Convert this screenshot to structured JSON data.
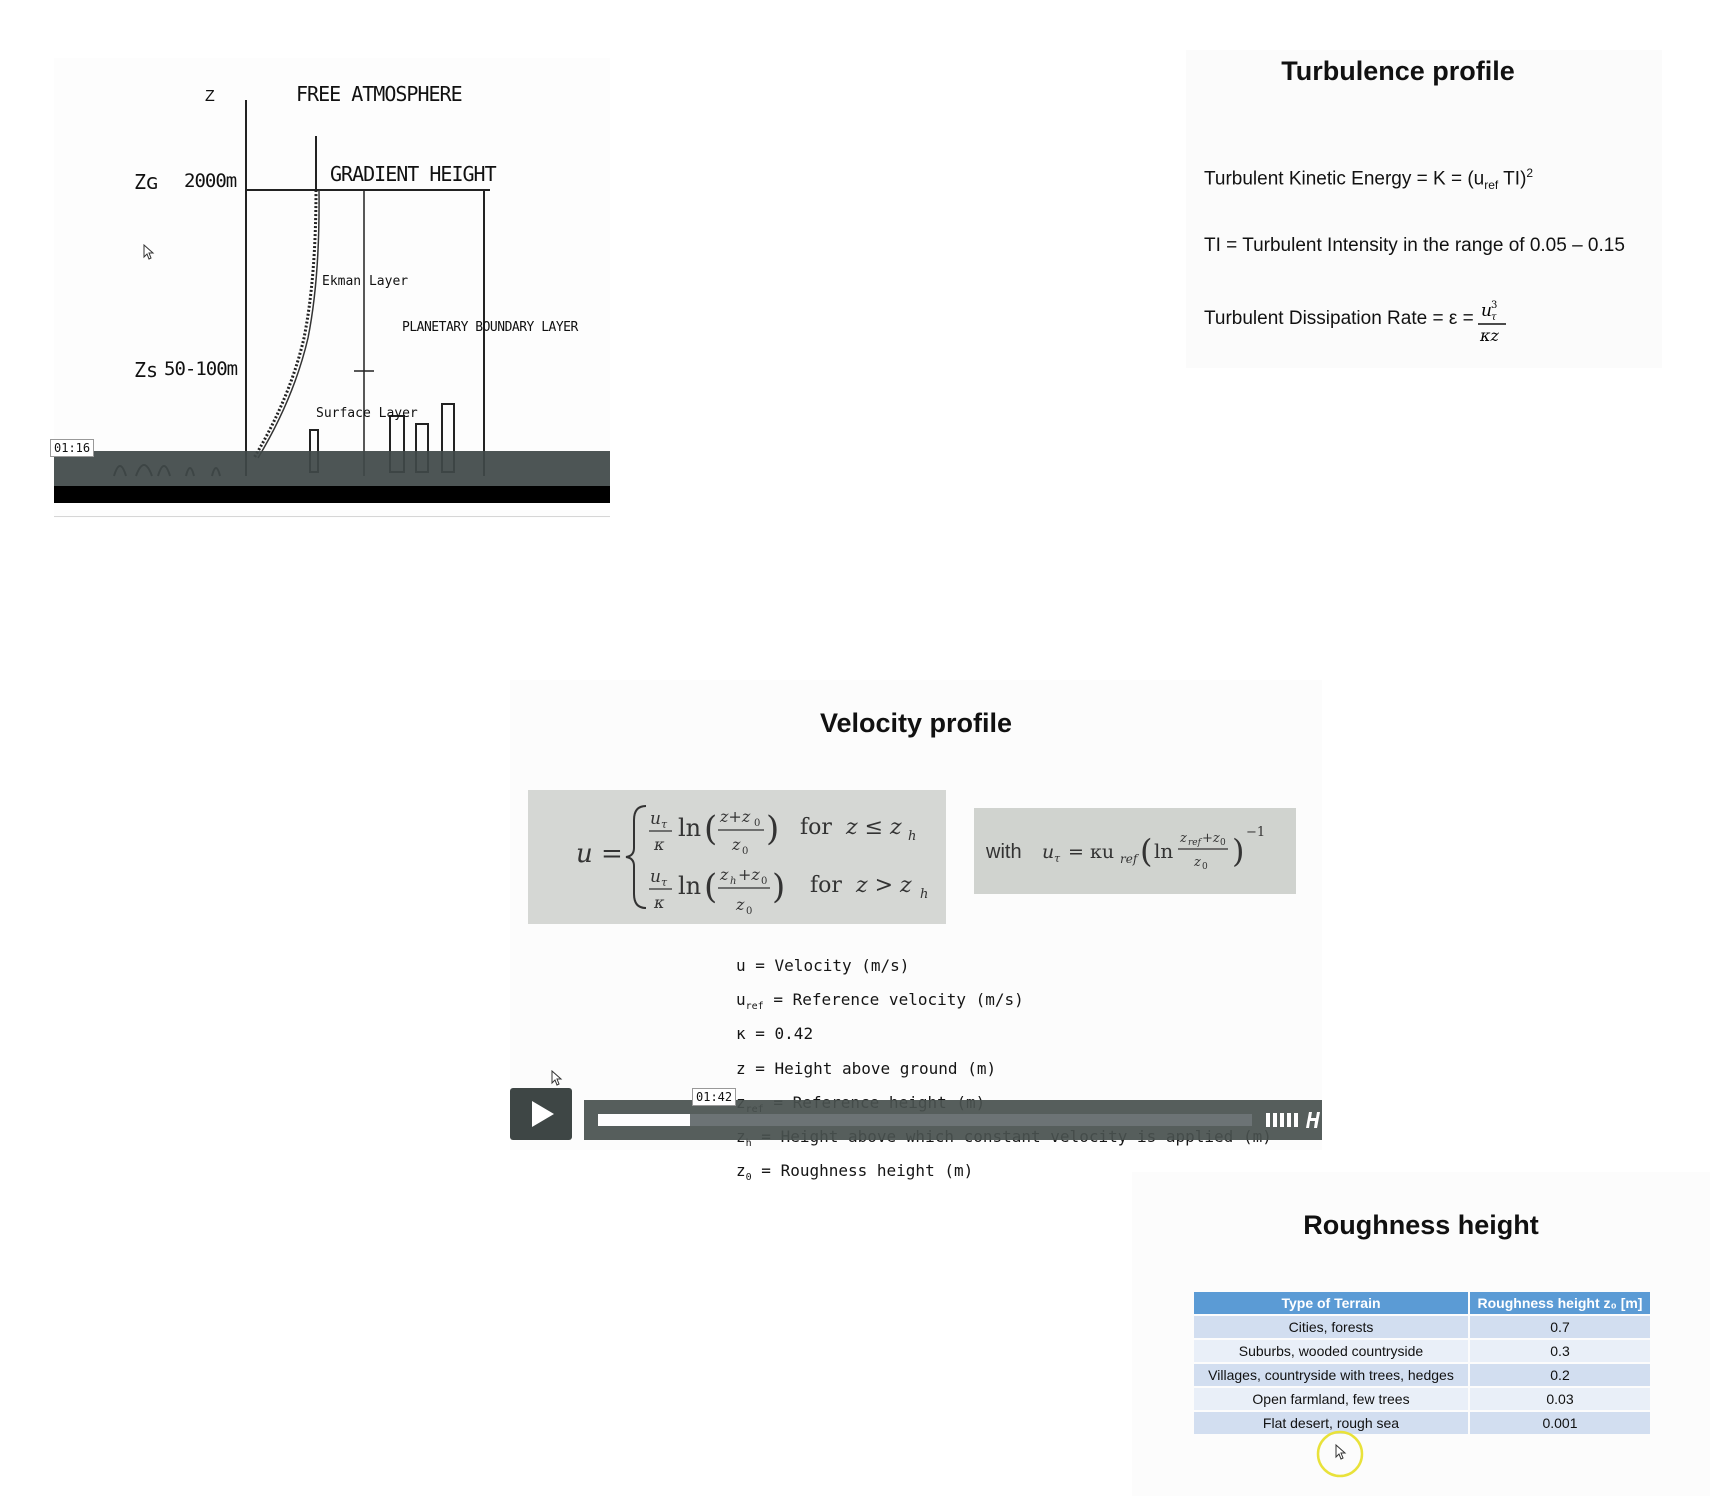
{
  "atmosphere_diagram": {
    "z_axis_label": "Z",
    "free_atmosphere": "FREE ATMOSPHERE",
    "gradient_height": "GRADIENT HEIGHT",
    "zg_label": "Zɢ",
    "zg_value": "2000m",
    "zs_label": "Zs",
    "zs_value": "50-100m",
    "ekman_layer": "Ekman Layer",
    "planetary_boundary_layer": "PLANETARY BOUNDARY LAYER",
    "surface_layer": "Surface Layer",
    "video_time": "01:16"
  },
  "turbulence": {
    "title": "Turbulence profile",
    "tke_text": "Turbulent Kinetic Energy = K = (u",
    "tke_sub": "ref",
    "tke_tail": " TI)",
    "tke_sup": "2",
    "ti_text": "TI = Turbulent Intensity in the range of 0.05 – 0.15",
    "dissipation_text": "Turbulent Dissipation Rate = ε ="
  },
  "velocity": {
    "title": "Velocity profile",
    "for_le": "for",
    "for_gt": "for",
    "with_label": "with",
    "variables": [
      {
        "sym": "u",
        "sub": "",
        "desc": " = Velocity (m/s)"
      },
      {
        "sym": "u",
        "sub": "ref",
        "desc": " = Reference velocity (m/s)"
      },
      {
        "sym": "κ",
        "sub": "",
        "desc": " =  0.42"
      },
      {
        "sym": "z",
        "sub": "",
        "desc": " = Height above ground (m)"
      },
      {
        "sym": "z",
        "sub": "ref",
        "desc": " = Reference height (m)"
      },
      {
        "sym": "z",
        "sub": "h",
        "desc": " = Height above which constant velocity is applied (m)"
      },
      {
        "sym": "z",
        "sub": "0",
        "desc": " = Roughness height (m)"
      }
    ],
    "video_time": "01:42",
    "progress": 0.14
  },
  "roughness": {
    "title": "Roughness height",
    "headers": [
      "Type of Terrain",
      "Roughness height z₀ [m]"
    ],
    "rows": [
      [
        "Cities, forests",
        "0.7"
      ],
      [
        "Suburbs, wooded countryside",
        "0.3"
      ],
      [
        "Villages, countryside with trees, hedges",
        "0.2"
      ],
      [
        "Open farmland, few trees",
        "0.03"
      ],
      [
        "Flat desert, rough sea",
        "0.001"
      ]
    ]
  },
  "colors": {
    "table_header": "#5b9bd5",
    "table_row_odd": "#d2def0",
    "table_row_even": "#e9eff8",
    "video_bar": "#49514f",
    "cursor_highlight": "#e9e23a"
  }
}
